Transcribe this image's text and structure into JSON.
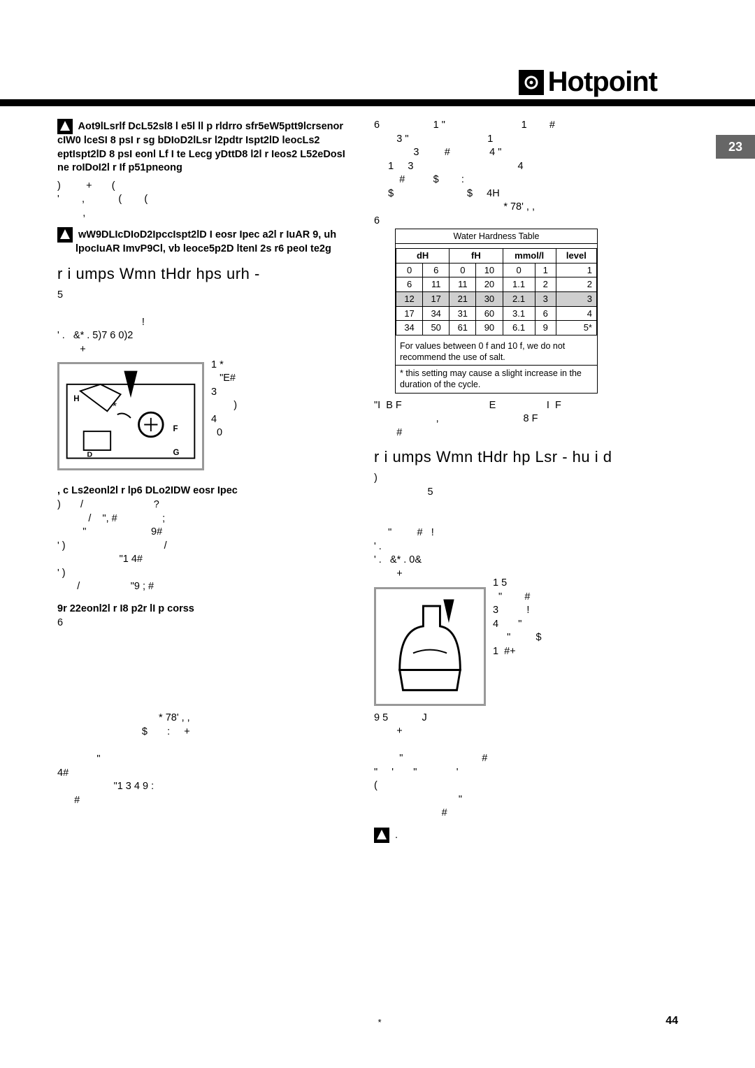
{
  "brand": {
    "name": "Hotpoint",
    "square_glyph": "⊙"
  },
  "page_tab": "23",
  "page_number": "44",
  "footnote_marker": "*",
  "left": {
    "warn1": "Aot9lLsrlf DcL52sl8 l e5l ll p rldrro sfr5eW5ptt9lcrsenor cIW0 lceSI 8 psI r sg bDIoD2lLsr l2pdtr Ispt2lD leocLs2 eptIspt2lD 8 psI eonl Lf I te Lecg yDttD8 l2l r Ieos2 L52eDosI ne roIDoI2l r If p51pneong",
    "body1": ")         +       (\n'        ,            (        (\n         ,",
    "warn2": "wW9DLIcDIoD2IpccIspt2lD I eosr Ipec a2l r IuAR 9, uh lpocIuAR ImvP9Cl, vb leoce5p2D ltenI 2s r6 peoI te2g",
    "h_salt": "r i umps Wmn tHdr hps urh -",
    "salt_p1": "5\n\n                                       !\n' .     &* .  5)7  6 0)2\n          +           1 *\n                        \"E#\n                      3\n                                )\n                      4\n                        0",
    "subh_adjust": ", c Ls2eonl2l r lp6 DLo2IDW eosr Ipec",
    "adjust_body": ")       /                         ?\n           /    \", #                ;\n         \"                       9#\n' )                                   /\n                      \"1 4#\n' )\n       /                  \"9 ; #",
    "subh_setting": "9r 22eonl2l r I8 p2r  lI p corss",
    "setting_body": "6\n\n\n\n\n\n\n                                    * 78' , ,\n                              $       :     +\n\n              \"\n4#\n                    \"1 3 4 9 :\n      #"
  },
  "right": {
    "top_body": "6                   1 \"                           1        #\n        3 \"                            1\n              3         #              4 \"\n     1     3                                     4\n         #          $        :\n     $                          $     4H\n                                              * 78' , ,\n6",
    "table_caption": "Water Hardness Table",
    "table_headers": [
      "dH",
      "fH",
      "mmol/l",
      "level"
    ],
    "table_rows": [
      {
        "dH": [
          "0",
          "6"
        ],
        "fH": [
          "0",
          "10"
        ],
        "mmol": [
          "0",
          "1"
        ],
        "lvl": "1",
        "shade": false
      },
      {
        "dH": [
          "6",
          "11"
        ],
        "fH": [
          "11",
          "20"
        ],
        "mmol": [
          "1.1",
          "2"
        ],
        "lvl": "2",
        "shade": false
      },
      {
        "dH": [
          "12",
          "17"
        ],
        "fH": [
          "21",
          "30"
        ],
        "mmol": [
          "2.1",
          "3"
        ],
        "lvl": "3",
        "shade": true
      },
      {
        "dH": [
          "17",
          "34"
        ],
        "fH": [
          "31",
          "60"
        ],
        "mmol": [
          "3.1",
          "6"
        ],
        "lvl": "4",
        "shade": false
      },
      {
        "dH": [
          "34",
          "50"
        ],
        "fH": [
          "61",
          "90"
        ],
        "mmol": [
          "6.1",
          "9"
        ],
        "lvl": "5*",
        "shade": false
      }
    ],
    "table_foot1": "For values between 0 f and 10 f, we do not recommend the use of salt.",
    "table_foot2": "* this setting may cause a slight increase in the duration of the cycle.",
    "after_table": "\"I  B F                               E                  I  F\n                      ,                              8 F\n        #",
    "h_rinse": "r i umps Wmn tHdr hp Lsr - hu i d",
    "rinse_body1": ")\n                                                     5\n\n\n             \"                 #                     !\n' .\n' .     &* .  0&\n          +         1 5\n                        \"              #\n                      3                    !\n                      4                \"\n                                 \"                    $\n                      1   #+\n9 5                 J\n          +\n\n              \"                                          #\n\"        '            \"                     '\n(\n                                              \"\n                                     #",
    "warn3": "."
  }
}
